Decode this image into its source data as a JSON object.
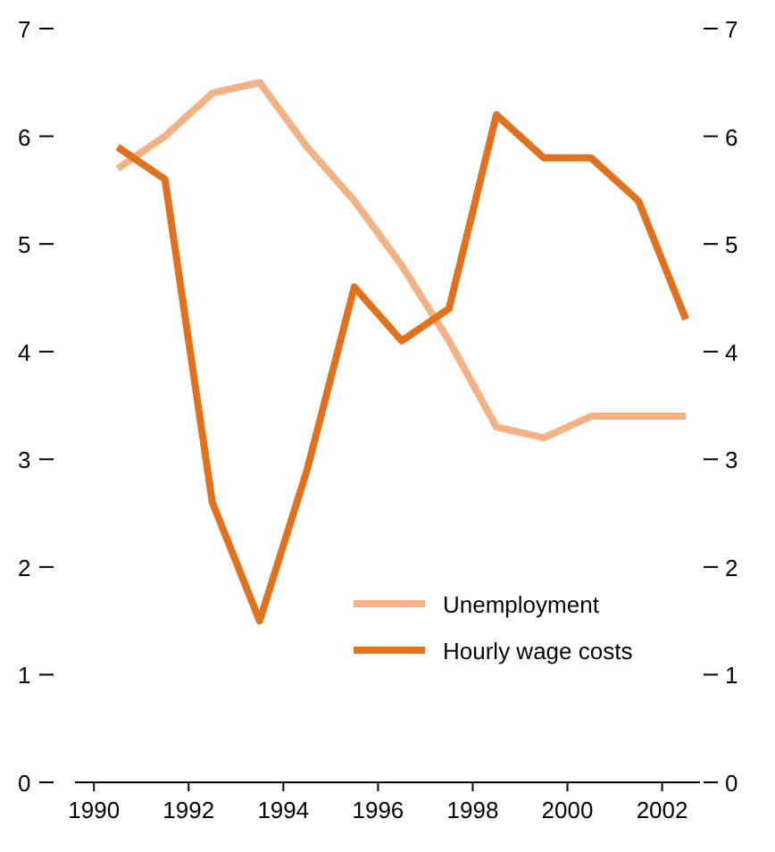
{
  "chart_data": {
    "type": "line",
    "x": [
      1990.5,
      1991.5,
      1992.5,
      1993.5,
      1994.5,
      1995.5,
      1996.5,
      1997.5,
      1998.5,
      1999.5,
      2000.5,
      2001.5,
      2002.5
    ],
    "series": [
      {
        "name": "Unemployment",
        "color": "#f4b183",
        "values": [
          5.7,
          6.0,
          6.4,
          6.5,
          5.9,
          5.4,
          4.8,
          4.1,
          3.3,
          3.2,
          3.4,
          3.4,
          3.4
        ]
      },
      {
        "name": "Hourly wage costs",
        "color": "#e2711d",
        "values": [
          5.9,
          5.6,
          2.6,
          1.5,
          2.9,
          4.6,
          4.1,
          4.4,
          6.2,
          5.8,
          5.8,
          5.4,
          4.3
        ]
      }
    ],
    "xlim": [
      1989.6,
      2002.8
    ],
    "xticks": [
      1990,
      1992,
      1994,
      1996,
      1998,
      2000,
      2002
    ],
    "ylim": [
      0,
      7
    ],
    "yticks": [
      0,
      1,
      2,
      3,
      4,
      5,
      6,
      7
    ],
    "y2lim": [
      0,
      7
    ],
    "y2ticks": [
      0,
      1,
      2,
      3,
      4,
      5,
      6,
      7
    ],
    "grid": false,
    "legend": "bottom right",
    "marker": "none",
    "line_style": "solid"
  }
}
